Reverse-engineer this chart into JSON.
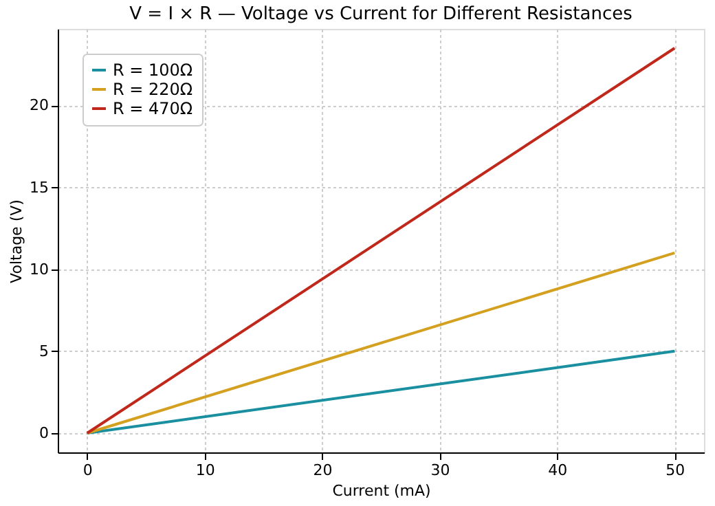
{
  "chart_data": {
    "type": "line",
    "title": "V = I × R — Voltage vs Current for Different Resistances",
    "xlabel": "Current (mA)",
    "ylabel": "Voltage (V)",
    "x": [
      0,
      50
    ],
    "series": [
      {
        "name": "R = 100Ω",
        "color": "#1a8fa0",
        "values": [
          0,
          5
        ]
      },
      {
        "name": "R = 220Ω",
        "color": "#d4a020",
        "values": [
          0,
          11
        ]
      },
      {
        "name": "R = 470Ω",
        "color": "#c0281b",
        "values": [
          0,
          23.5
        ]
      }
    ],
    "xlim": [
      -2.5,
      52.5
    ],
    "xticks": [
      0,
      10,
      20,
      30,
      40,
      50
    ],
    "ylim": [
      -1.175,
      24.675
    ],
    "yticks": [
      0,
      5,
      10,
      15,
      20
    ],
    "grid": true,
    "legend": "top left",
    "line_style": "solid",
    "marker": "none"
  }
}
